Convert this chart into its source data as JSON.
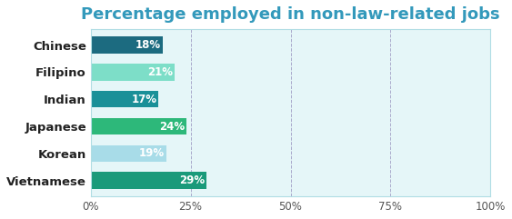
{
  "title": "Percentage employed in non-law-related jobs",
  "categories": [
    "Chinese",
    "Filipino",
    "Indian",
    "Japanese",
    "Korean",
    "Vietnamese"
  ],
  "values": [
    18,
    21,
    17,
    24,
    19,
    29
  ],
  "bar_colors": [
    "#1a6b7c",
    "#80e0c8",
    "#1a8a9a",
    "#2db87a",
    "#a8dce8",
    "#1a9a7a"
  ],
  "title_color": "#3399bb",
  "xlim": [
    0,
    100
  ],
  "xticks": [
    0,
    25,
    50,
    75,
    100
  ],
  "xticklabels": [
    "0%",
    "25%",
    "50%",
    "75%",
    "100%"
  ],
  "plot_bg_color": "#e5f6f8",
  "bar_height": 0.62,
  "title_fontsize": 13,
  "label_fontsize": 8.5,
  "tick_fontsize": 8.5,
  "category_fontsize": 9.5
}
